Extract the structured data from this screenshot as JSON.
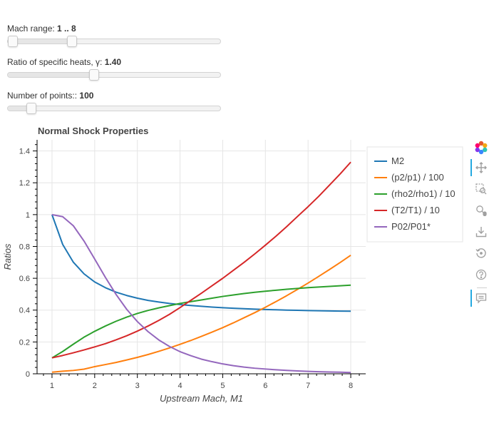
{
  "sliders": [
    {
      "label": "Mach range: ",
      "value_text": "1 .. 8",
      "range": [
        1,
        25
      ],
      "low": 1,
      "high": 8
    },
    {
      "label": "Ratio of specific heats, γ: ",
      "value_text": "1.40",
      "range": [
        1,
        2
      ],
      "value": 1.4
    },
    {
      "label": "Number of points:: ",
      "value_text": "100",
      "range": [
        10,
        1000
      ],
      "value": 100
    }
  ],
  "toolbar": {
    "tools": [
      "bokeh-logo-icon",
      "pan-icon",
      "box-zoom-icon",
      "wheel-zoom-icon",
      "save-icon",
      "reset-icon",
      "help-icon",
      "hover-icon"
    ]
  },
  "chart_data": {
    "type": "line",
    "title": "Normal Shock Properties",
    "xlabel": "Upstream Mach, M1",
    "ylabel": "Ratios",
    "xlim": [
      0.65,
      8.35
    ],
    "ylim": [
      0,
      1.47
    ],
    "xticks": [
      1,
      2,
      3,
      4,
      5,
      6,
      7,
      8
    ],
    "yticks": [
      0,
      0.2,
      0.4,
      0.6,
      0.8,
      1,
      1.2,
      1.4
    ],
    "ytick_labels": [
      "0",
      "0.2",
      "0.4",
      "0.6",
      "0.8",
      "1",
      "1.2",
      "1.4"
    ],
    "grid": true,
    "legend_position": "right",
    "x": [
      1.0,
      1.25,
      1.5,
      1.75,
      2.0,
      2.25,
      2.5,
      2.75,
      3.0,
      3.25,
      3.5,
      3.75,
      4.0,
      4.25,
      4.5,
      4.75,
      5.0,
      5.25,
      5.5,
      5.75,
      6.0,
      6.25,
      6.5,
      6.75,
      7.0,
      7.25,
      7.5,
      7.75,
      8.0
    ],
    "series": [
      {
        "name": "M2",
        "color": "#1f77b4",
        "values": [
          1.0,
          0.813,
          0.701,
          0.628,
          0.577,
          0.541,
          0.513,
          0.492,
          0.475,
          0.461,
          0.451,
          0.442,
          0.435,
          0.429,
          0.424,
          0.419,
          0.415,
          0.412,
          0.409,
          0.406,
          0.404,
          0.402,
          0.4,
          0.399,
          0.397,
          0.396,
          0.395,
          0.394,
          0.393
        ]
      },
      {
        "name": "(p2/p1) / 100",
        "color": "#ff7f0e",
        "values": [
          0.01,
          0.016,
          0.021,
          0.029,
          0.045,
          0.058,
          0.071,
          0.087,
          0.103,
          0.121,
          0.141,
          0.162,
          0.185,
          0.209,
          0.235,
          0.262,
          0.29,
          0.32,
          0.352,
          0.384,
          0.418,
          0.454,
          0.491,
          0.53,
          0.57,
          0.612,
          0.655,
          0.699,
          0.745
        ]
      },
      {
        "name": "(rho2/rho1) / 10",
        "color": "#2ca02c",
        "values": [
          0.1,
          0.14,
          0.186,
          0.23,
          0.267,
          0.3,
          0.33,
          0.356,
          0.379,
          0.398,
          0.414,
          0.428,
          0.442,
          0.453,
          0.464,
          0.475,
          0.486,
          0.495,
          0.504,
          0.512,
          0.519,
          0.525,
          0.531,
          0.536,
          0.541,
          0.545,
          0.549,
          0.553,
          0.557
        ]
      },
      {
        "name": "(T2/T1) / 10",
        "color": "#d62728",
        "values": [
          0.1,
          0.115,
          0.132,
          0.15,
          0.169,
          0.189,
          0.213,
          0.239,
          0.268,
          0.3,
          0.335,
          0.373,
          0.416,
          0.461,
          0.506,
          0.553,
          0.6,
          0.65,
          0.7,
          0.753,
          0.808,
          0.865,
          0.925,
          0.988,
          1.05,
          1.115,
          1.185,
          1.255,
          1.33
        ]
      },
      {
        "name": "P02/P01*",
        "color": "#9467bd",
        "values": [
          1.0,
          0.987,
          0.93,
          0.834,
          0.721,
          0.606,
          0.499,
          0.405,
          0.328,
          0.265,
          0.213,
          0.172,
          0.139,
          0.114,
          0.092,
          0.076,
          0.062,
          0.051,
          0.042,
          0.035,
          0.03,
          0.025,
          0.021,
          0.018,
          0.015,
          0.013,
          0.011,
          0.01,
          0.008
        ]
      }
    ]
  }
}
